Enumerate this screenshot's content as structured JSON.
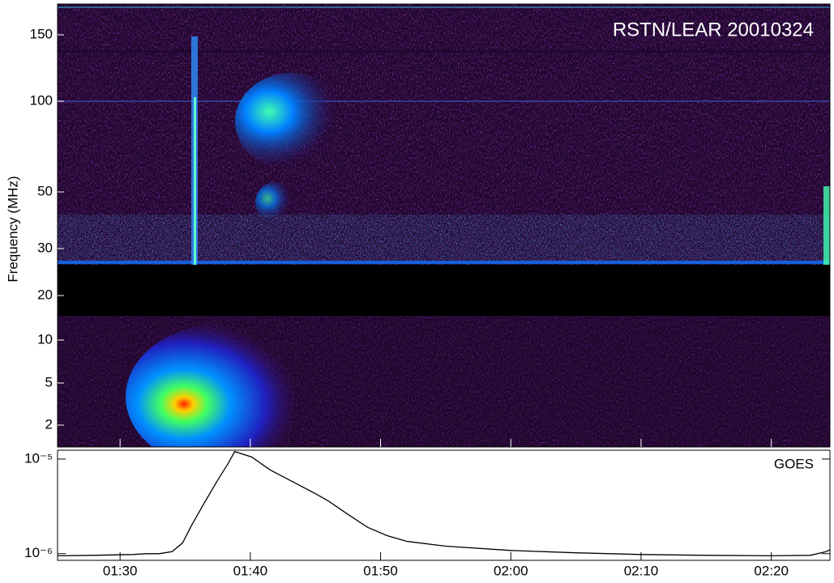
{
  "chart_data": [
    {
      "type": "spectrogram",
      "title": "RSTN/LEAR 20010324",
      "ylabel": "Frequency (MHz)",
      "ylim": [
        1.2,
        180
      ],
      "yticks": [
        2,
        5,
        10,
        20,
        30,
        50,
        100,
        150
      ]
    },
    {
      "type": "line",
      "annotation": "GOES",
      "log_y": true,
      "xlim": [
        85.2,
        144.5
      ],
      "xticks": [
        {
          "value": 90,
          "label": "01:30"
        },
        {
          "value": 100,
          "label": "01:40"
        },
        {
          "value": 110,
          "label": "01:50"
        },
        {
          "value": 120,
          "label": "02:00"
        },
        {
          "value": 130,
          "label": "02:10"
        },
        {
          "value": 140,
          "label": "02:20"
        }
      ],
      "ylim": [
        8.5e-07,
        1.24e-05
      ],
      "yticks": [
        {
          "value": 1e-06,
          "label": "10⁻⁶"
        },
        {
          "value": 1e-05,
          "label": "10⁻⁵"
        }
      ],
      "x": [
        85.2,
        88,
        91,
        92,
        93,
        94,
        94.8,
        95.5,
        96.5,
        97.5,
        98.3,
        98.8,
        100.1,
        101.5,
        103,
        105,
        106,
        107.5,
        109,
        110.5,
        112,
        115,
        120,
        125,
        130,
        135,
        140,
        143,
        144.2,
        144.5
      ],
      "series": [
        {
          "color": "#000000",
          "values": [
            9.5e-07,
            9.6e-07,
            9.8e-07,
            1e-06,
            1e-06,
            1.05e-06,
            1.3e-06,
            2e-06,
            3.5e-06,
            6e-06,
            9e-06,
            1.2e-05,
            1.05e-05,
            7.7e-06,
            6e-06,
            4.3e-06,
            3.6e-06,
            2.6e-06,
            1.9e-06,
            1.55e-06,
            1.35e-06,
            1.2e-06,
            1.08e-06,
            1.02e-06,
            9.8e-07,
            9.6e-07,
            9.5e-07,
            9.6e-07,
            1.05e-06,
            1.1e-06
          ]
        }
      ]
    }
  ]
}
